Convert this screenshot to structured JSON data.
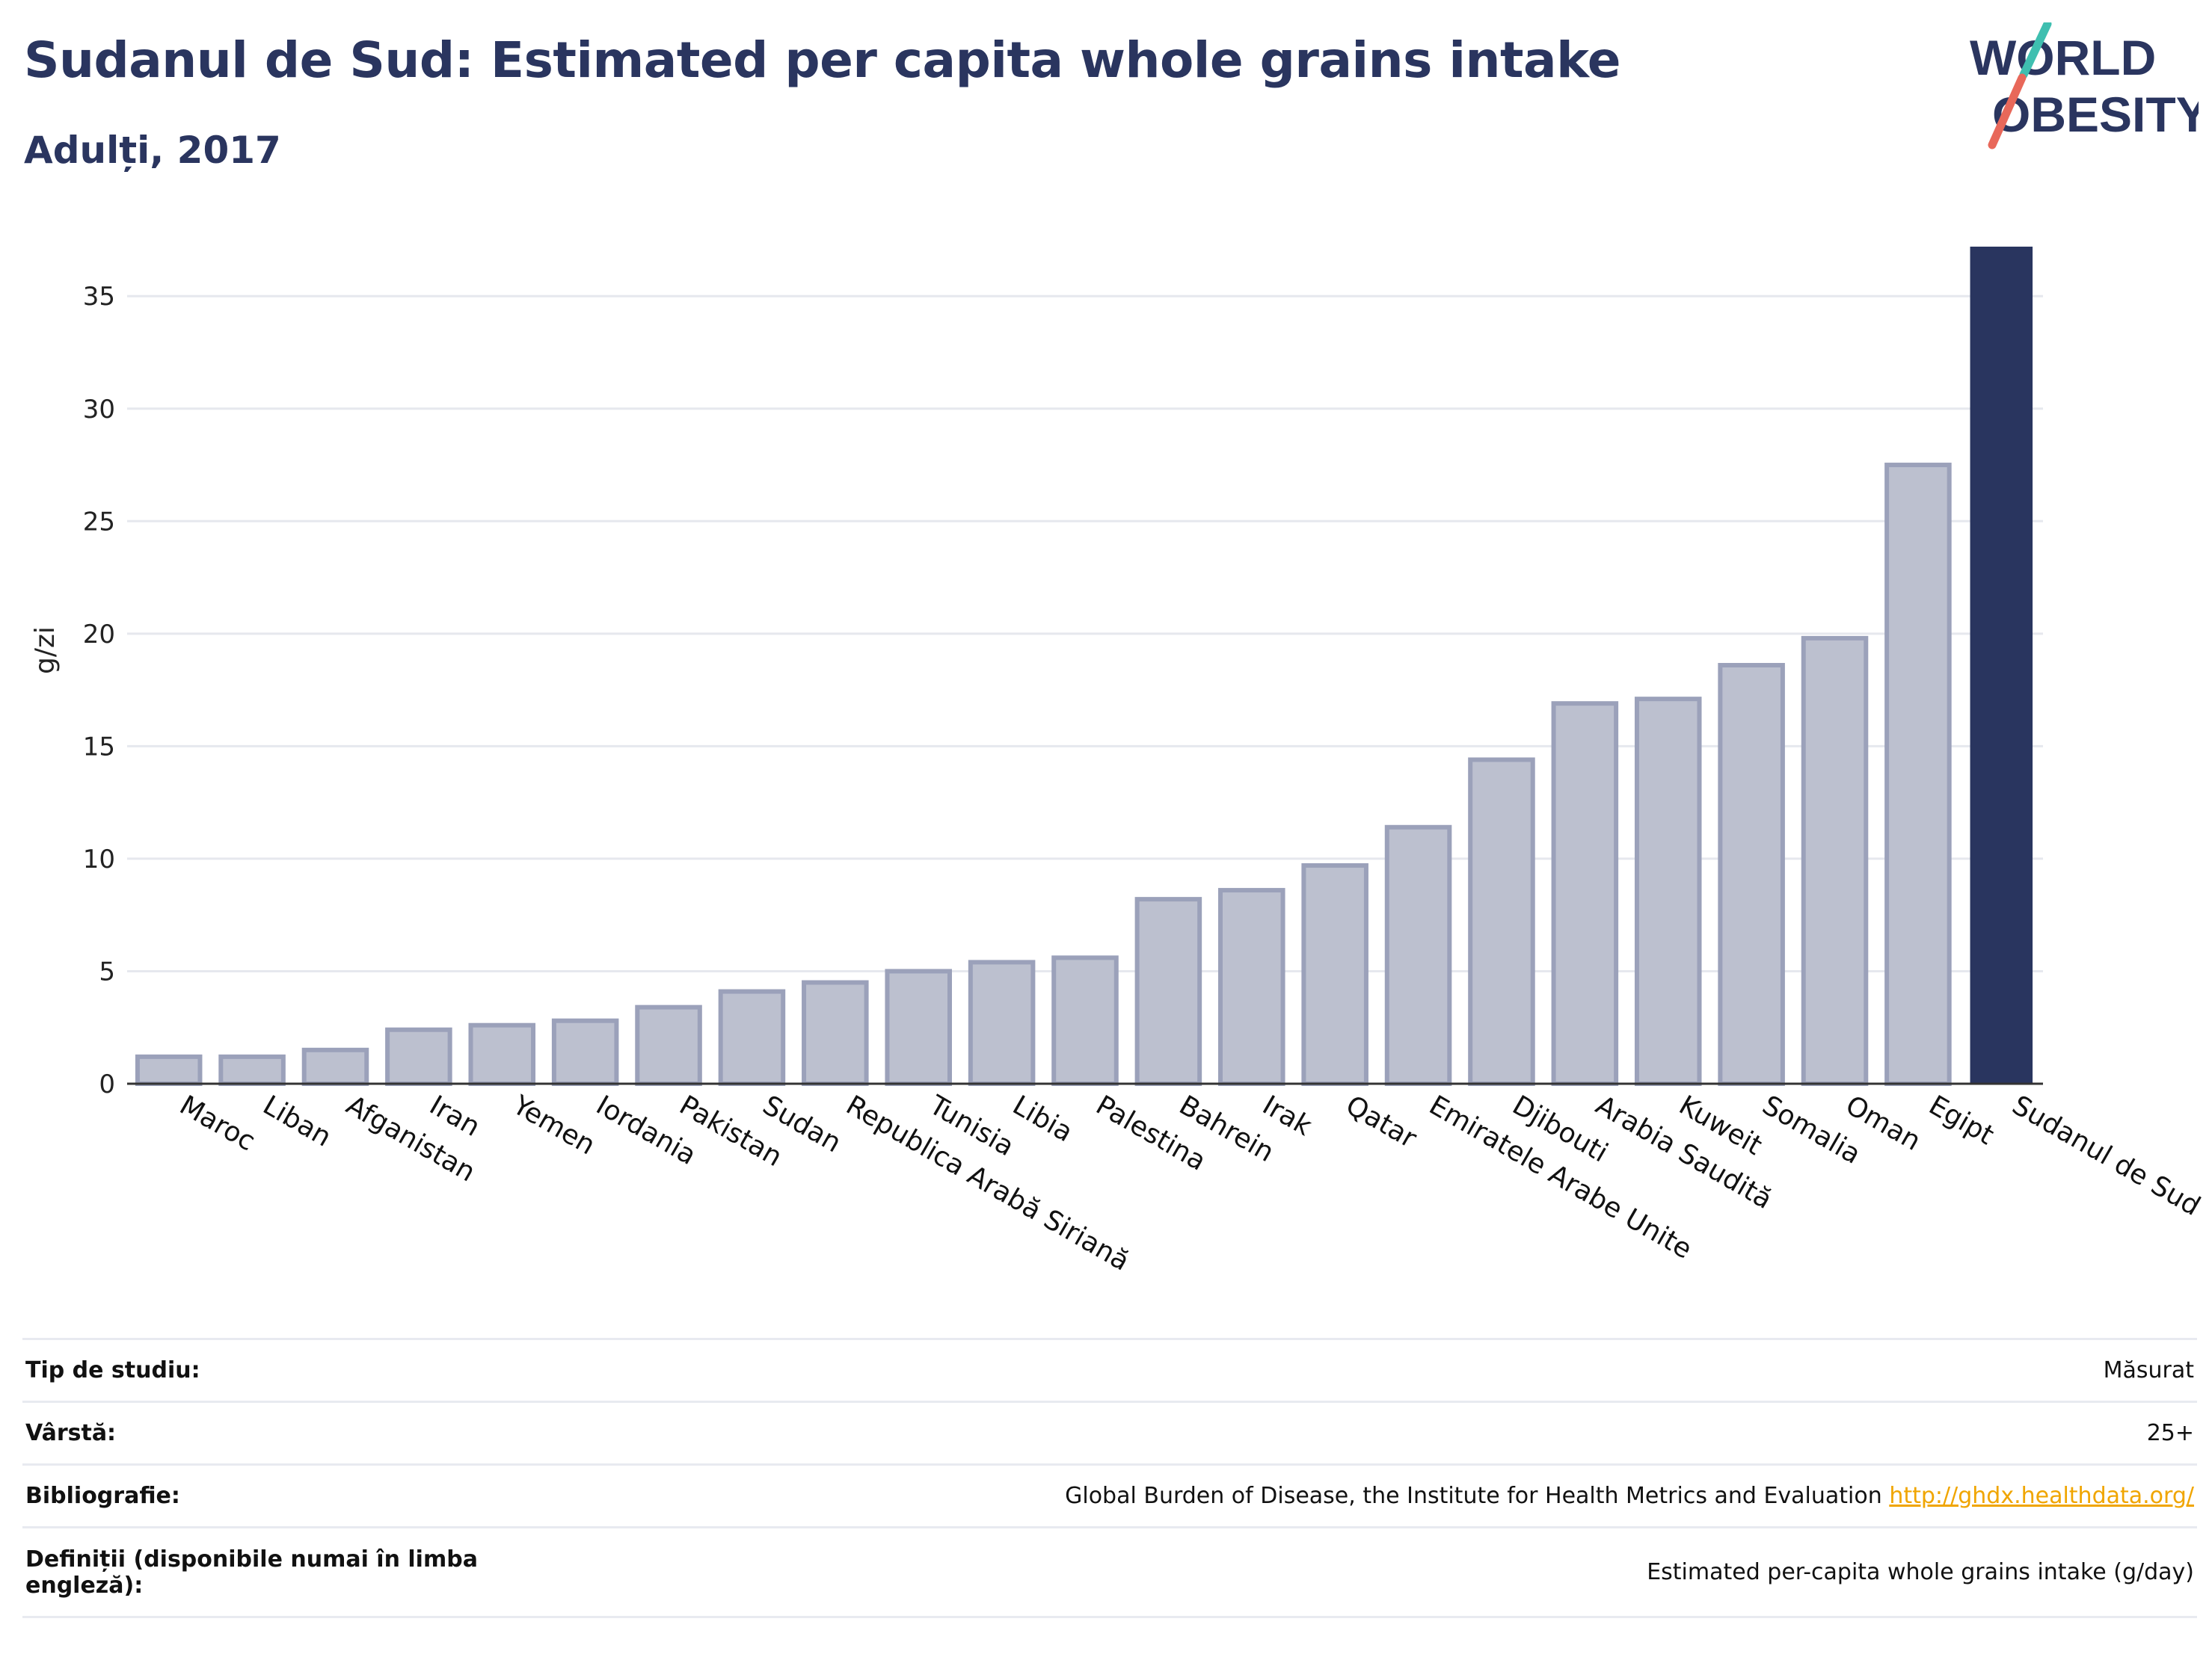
{
  "header": {
    "title": "Sudanul de Sud: Estimated per capita whole grains intake",
    "subtitle": "Adulți, 2017"
  },
  "logo": {
    "line1": "WORLD",
    "line2": "OBESITY"
  },
  "colors": {
    "title": "#2a355f",
    "bar_default": "#bcc0cf",
    "bar_stroke": "#9ba1ba",
    "bar_highlight": "#29355f",
    "gridline": "#e6e8ee",
    "logo_teal": "#3fbfb0",
    "logo_red": "#e8685a",
    "link": "#f0a500"
  },
  "chart_data": {
    "type": "bar",
    "title": "Sudanul de Sud: Estimated per capita whole grains intake",
    "subtitle": "Adulți, 2017",
    "ylabel": "g/zi",
    "xlabel": "",
    "ylim": [
      0,
      37.2
    ],
    "yticks": [
      0,
      5,
      10,
      15,
      20,
      25,
      30,
      35
    ],
    "grid": true,
    "highlight": "Sudanul de Sud",
    "categories": [
      "Maroc",
      "Liban",
      "Afganistan",
      "Iran",
      "Yemen",
      "Iordania",
      "Pakistan",
      "Sudan",
      "Republica Arabă Siriană",
      "Tunisia",
      "Libia",
      "Palestina",
      "Bahrein",
      "Irak",
      "Qatar",
      "Emiratele Arabe Unite",
      "Djibouti",
      "Arabia Saudită",
      "Kuweit",
      "Somalia",
      "Oman",
      "Egipt",
      "Sudanul de Sud"
    ],
    "values": [
      1.2,
      1.2,
      1.5,
      2.4,
      2.6,
      2.8,
      3.4,
      4.1,
      4.5,
      5.0,
      5.4,
      5.6,
      8.2,
      8.6,
      9.7,
      11.4,
      14.4,
      16.9,
      17.1,
      18.6,
      19.8,
      27.5,
      37.2
    ]
  },
  "info": [
    {
      "label": "Tip de studiu:",
      "value": "Măsurat"
    },
    {
      "label": "Vârstă:",
      "value": "25+"
    },
    {
      "label": "Bibliografie:",
      "value": "Global Burden of Disease, the Institute for Health Metrics and Evaluation",
      "link": "http://ghdx.healthdata.org/"
    },
    {
      "label": "Definiții (disponibile numai în limba engleză):",
      "value": "Estimated per-capita whole grains intake (g/day)"
    }
  ]
}
